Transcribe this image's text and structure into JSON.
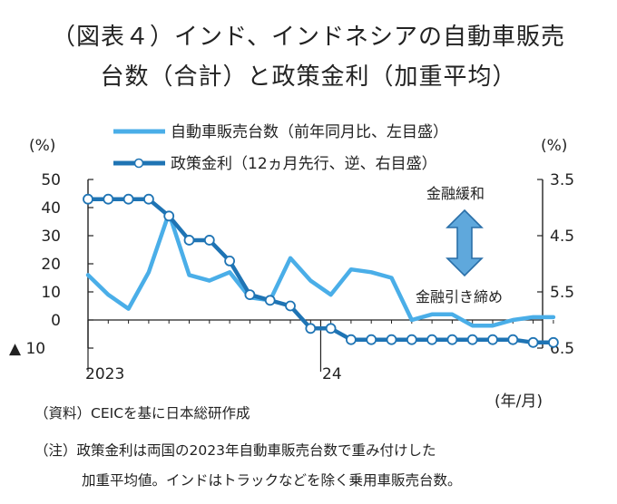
{
  "title": {
    "line1": "（図表４）インド、インドネシアの自動車販売",
    "line2": "台数（合計）と政策金利（加重平均）"
  },
  "notes": {
    "source": "（資料）CEICを基に日本総研作成",
    "note_line1": "（注）政策金利は両国の2023年自動車販売台数で重み付けした",
    "note_line2": "加重平均値。インドはトラックなどを除く乗用車販売台数。"
  },
  "colors": {
    "sales": "#4aaee8",
    "rate": "#1f74b4",
    "arrow_fill": "#5fa8dc",
    "arrow_stroke": "#2a6fa8",
    "axis": "#222222"
  },
  "chart_data": {
    "type": "line",
    "x_labels": [
      "2023",
      "24"
    ],
    "x_axis_unit": "(年/月)",
    "left_axis": {
      "unit": "(%)",
      "range": [
        -10,
        50
      ],
      "ticks": [
        -10,
        0,
        10,
        20,
        30,
        40,
        50
      ],
      "tick_labels": [
        "▲ 10",
        "0",
        "10",
        "20",
        "30",
        "40",
        "50"
      ]
    },
    "right_axis": {
      "unit": "(%)",
      "inverted": true,
      "range": [
        3.5,
        6.5
      ],
      "ticks": [
        3.5,
        4.5,
        5.5,
        6.5
      ],
      "tick_labels": [
        "3.5",
        "4.5",
        "5.5",
        "6.5"
      ]
    },
    "annotations": {
      "easing": "金融緩和",
      "tightening": "金融引き締め"
    },
    "series": [
      {
        "name": "自動車販売台数（前年同月比、左目盛）",
        "axis": "left",
        "marker": "none",
        "values": [
          16,
          9,
          4,
          17,
          38,
          16,
          14,
          17,
          8,
          7,
          22,
          14,
          9,
          18,
          17,
          15,
          0,
          2,
          2,
          -2,
          -2,
          0,
          1,
          1
        ]
      },
      {
        "name": "政策金利（12ヵ月先行、逆、右目盛）",
        "axis": "right",
        "marker": "circle",
        "values": [
          3.85,
          3.85,
          3.85,
          3.85,
          4.15,
          4.58,
          4.58,
          4.95,
          5.55,
          5.65,
          5.75,
          6.15,
          6.15,
          6.35,
          6.35,
          6.35,
          6.35,
          6.35,
          6.35,
          6.35,
          6.35,
          6.35,
          6.4,
          6.4
        ]
      }
    ]
  }
}
